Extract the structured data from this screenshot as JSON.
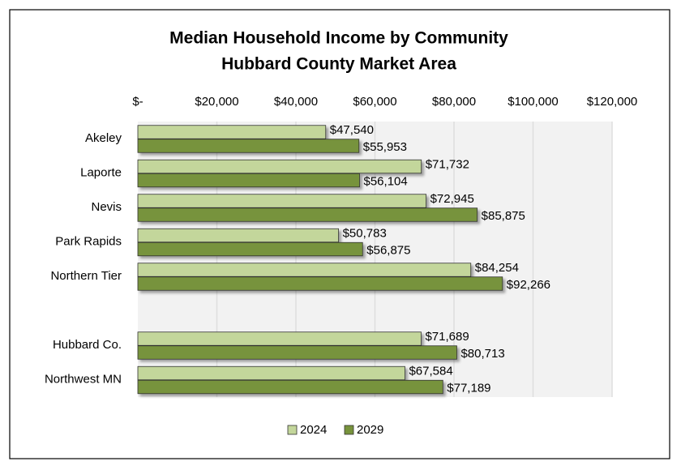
{
  "chart_data": {
    "type": "hbar",
    "title": "Median Household Income by Community",
    "subtitle": "Hubbard County Market Area",
    "categories": [
      "Akeley",
      "Laporte",
      "Nevis",
      "Park Rapids",
      "Northern Tier",
      null,
      "Hubbard Co.",
      "Northwest MN"
    ],
    "series": [
      {
        "name": "2024",
        "color": "#c3d69b",
        "values": [
          47540,
          71732,
          72945,
          50783,
          84254,
          null,
          71689,
          67584
        ],
        "value_labels": [
          "$47,540",
          "$71,732",
          "$72,945",
          "$50,783",
          "$84,254",
          null,
          "$71,689",
          "$67,584"
        ]
      },
      {
        "name": "2029",
        "color": "#77933c",
        "values": [
          55953,
          56104,
          85875,
          56875,
          92266,
          null,
          80713,
          77189
        ],
        "value_labels": [
          "$55,953",
          "$56,104",
          "$85,875",
          "$56,875",
          "$92,266",
          null,
          "$80,713",
          "$77,189"
        ]
      }
    ],
    "xlim": [
      0,
      120000
    ],
    "xticks": [
      {
        "value": 0,
        "label": "$-"
      },
      {
        "value": 20000,
        "label": "$20,000"
      },
      {
        "value": 40000,
        "label": "$40,000"
      },
      {
        "value": 60000,
        "label": "$60,000"
      },
      {
        "value": 80000,
        "label": "$80,000"
      },
      {
        "value": 100000,
        "label": "$100,000"
      },
      {
        "value": 120000,
        "label": "$120,000"
      }
    ],
    "grid": true,
    "legend": "bottom"
  }
}
